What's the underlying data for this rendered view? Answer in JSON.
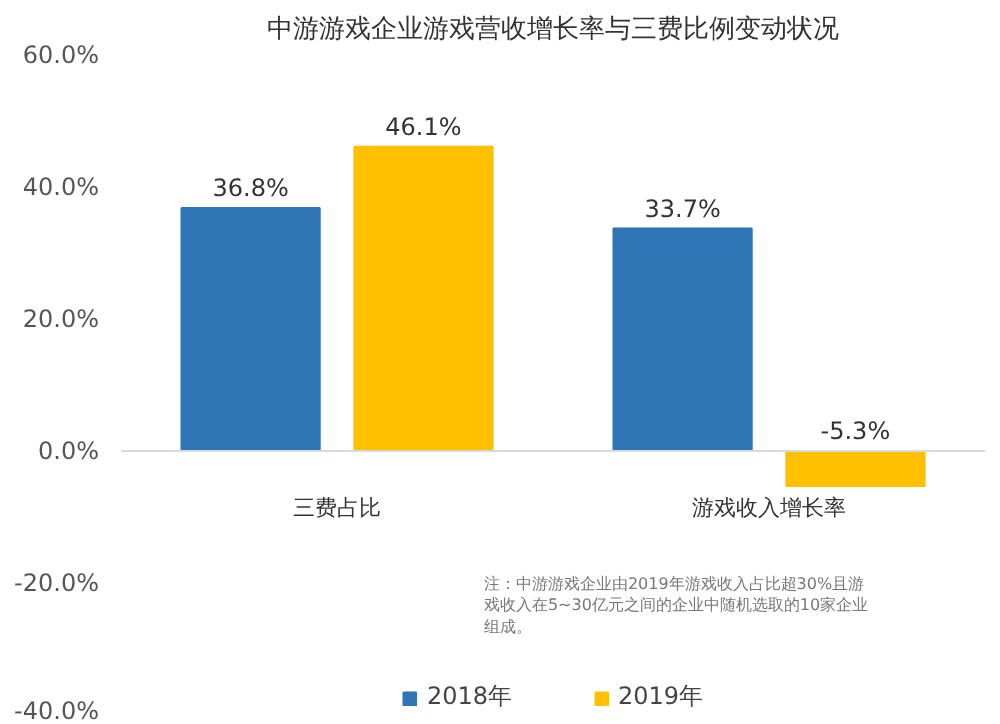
{
  "chart_data": {
    "type": "bar",
    "title": "中游游戏企业游戏营收增长率与三费比例变动状况",
    "categories": [
      "三费占比",
      "游戏收入增长率"
    ],
    "series": [
      {
        "name": "2018年",
        "color": "#2e75b6",
        "values": [
          36.8,
          33.7
        ],
        "value_labels": [
          "36.8%",
          "33.7%"
        ]
      },
      {
        "name": "2019年",
        "color": "#ffc000",
        "values": [
          46.1,
          -5.3
        ],
        "value_labels": [
          "46.1%",
          "-5.3%"
        ]
      }
    ],
    "ylim": [
      -40,
      60
    ],
    "yticks": [
      {
        "value": -40,
        "label": "-40.0%"
      },
      {
        "value": -20,
        "label": "-20.0%"
      },
      {
        "value": 0,
        "label": "0.0%"
      },
      {
        "value": 20,
        "label": "20.0%"
      },
      {
        "value": 40,
        "label": "40.0%"
      },
      {
        "value": 60,
        "label": "60.0%"
      }
    ],
    "grid": false,
    "legend": "bottom",
    "annotations": [
      "注：中游游戏企业由2019年游戏收入占比超30%且游戏收入在5~30亿元之间的企业中随机选取的10家企业组成。"
    ]
  }
}
